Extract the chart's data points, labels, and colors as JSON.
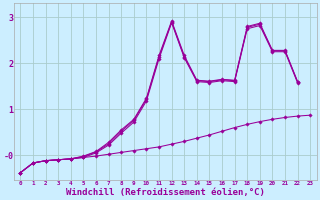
{
  "background_color": "#cceeff",
  "grid_color": "#aacccc",
  "line_color": "#990099",
  "marker_color": "#990099",
  "xlabel": "Windchill (Refroidissement éolien,°C)",
  "xlabel_fontsize": 6.5,
  "xlim": [
    -0.5,
    23.5
  ],
  "ylim": [
    -0.55,
    3.3
  ],
  "yticks": [
    0,
    1,
    2,
    3
  ],
  "ytick_labels": [
    "-0",
    "1",
    "2",
    "3"
  ],
  "xticks": [
    0,
    1,
    2,
    3,
    4,
    5,
    6,
    7,
    8,
    9,
    10,
    11,
    12,
    13,
    14,
    15,
    16,
    17,
    18,
    19,
    20,
    21,
    22,
    23
  ],
  "curve_base": {
    "x": [
      0,
      1,
      2,
      3,
      4,
      5,
      6,
      7,
      8,
      9,
      10,
      11,
      12,
      13,
      14,
      15,
      16,
      17,
      18,
      19,
      20,
      21,
      22,
      23
    ],
    "y": [
      -0.38,
      -0.17,
      -0.12,
      -0.1,
      -0.08,
      -0.05,
      -0.02,
      0.02,
      0.06,
      0.1,
      0.14,
      0.18,
      0.24,
      0.3,
      0.37,
      0.44,
      0.52,
      0.6,
      0.67,
      0.73,
      0.78,
      0.82,
      0.85,
      0.87
    ]
  },
  "curve_spike1": {
    "x": [
      0,
      1,
      2,
      3,
      4,
      5,
      6,
      7,
      8,
      9,
      10,
      11,
      12,
      13,
      14,
      15,
      16,
      17,
      18,
      19,
      20,
      21,
      22
    ],
    "y": [
      -0.38,
      -0.17,
      -0.12,
      -0.1,
      -0.08,
      -0.05,
      0.05,
      0.22,
      0.48,
      0.72,
      1.18,
      2.1,
      2.88,
      2.12,
      1.6,
      1.58,
      1.62,
      1.6,
      2.75,
      2.82,
      2.25,
      2.25,
      1.57
    ]
  },
  "curve_spike2": {
    "x": [
      0,
      1,
      2,
      3,
      4,
      5,
      6,
      7,
      8,
      9,
      10,
      11,
      12,
      13,
      14,
      15,
      16,
      17,
      18,
      19,
      20,
      21,
      22
    ],
    "y": [
      -0.38,
      -0.17,
      -0.12,
      -0.1,
      -0.08,
      -0.03,
      0.07,
      0.25,
      0.52,
      0.76,
      1.22,
      2.14,
      2.9,
      2.14,
      1.62,
      1.6,
      1.64,
      1.62,
      2.78,
      2.85,
      2.27,
      2.27,
      1.59
    ]
  },
  "curve_spike3": {
    "x": [
      0,
      1,
      2,
      3,
      4,
      5,
      6,
      7,
      8,
      9,
      10,
      11,
      12,
      13,
      14,
      15,
      16,
      17,
      18,
      19,
      20,
      21,
      22
    ],
    "y": [
      -0.38,
      -0.17,
      -0.12,
      -0.1,
      -0.08,
      -0.02,
      0.08,
      0.28,
      0.55,
      0.78,
      1.24,
      2.17,
      2.92,
      2.17,
      1.63,
      1.61,
      1.65,
      1.63,
      2.8,
      2.87,
      2.28,
      2.28,
      1.6
    ]
  }
}
